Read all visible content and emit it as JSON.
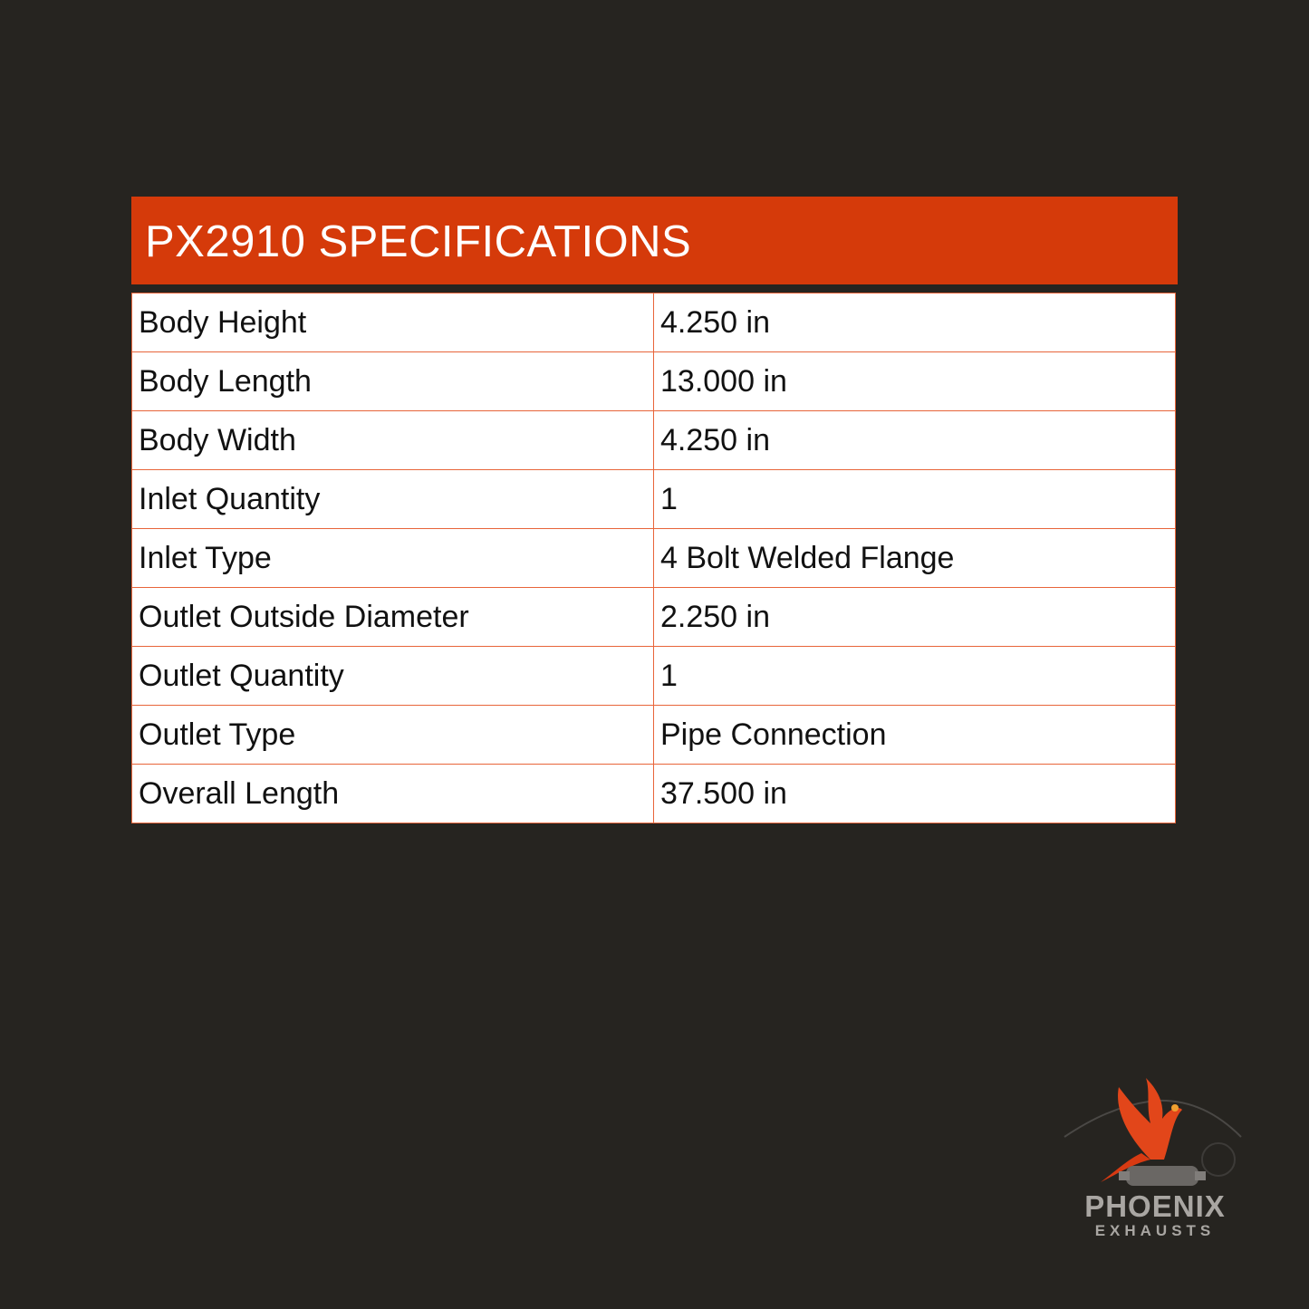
{
  "header": {
    "title": "PX2910 SPECIFICATIONS"
  },
  "colors": {
    "background": "#262420",
    "accent": "#d53a0a",
    "border": "#e8653a"
  },
  "specs": [
    {
      "label": "Body Height",
      "value": "4.250 in"
    },
    {
      "label": "Body Length",
      "value": "13.000 in"
    },
    {
      "label": "Body Width",
      "value": "4.250 in"
    },
    {
      "label": "Inlet Quantity",
      "value": "1"
    },
    {
      "label": "Inlet Type",
      "value": "4 Bolt Welded Flange"
    },
    {
      "label": "Outlet Outside Diameter",
      "value": "2.250 in"
    },
    {
      "label": "Outlet Quantity",
      "value": "1"
    },
    {
      "label": "Outlet Type",
      "value": "Pipe Connection"
    },
    {
      "label": "Overall Length",
      "value": "37.500 in"
    }
  ],
  "logo": {
    "name": "PHOENIX",
    "sub": "EXHAUSTS",
    "icon": "phoenix-bird-catalytic-converter-icon"
  }
}
